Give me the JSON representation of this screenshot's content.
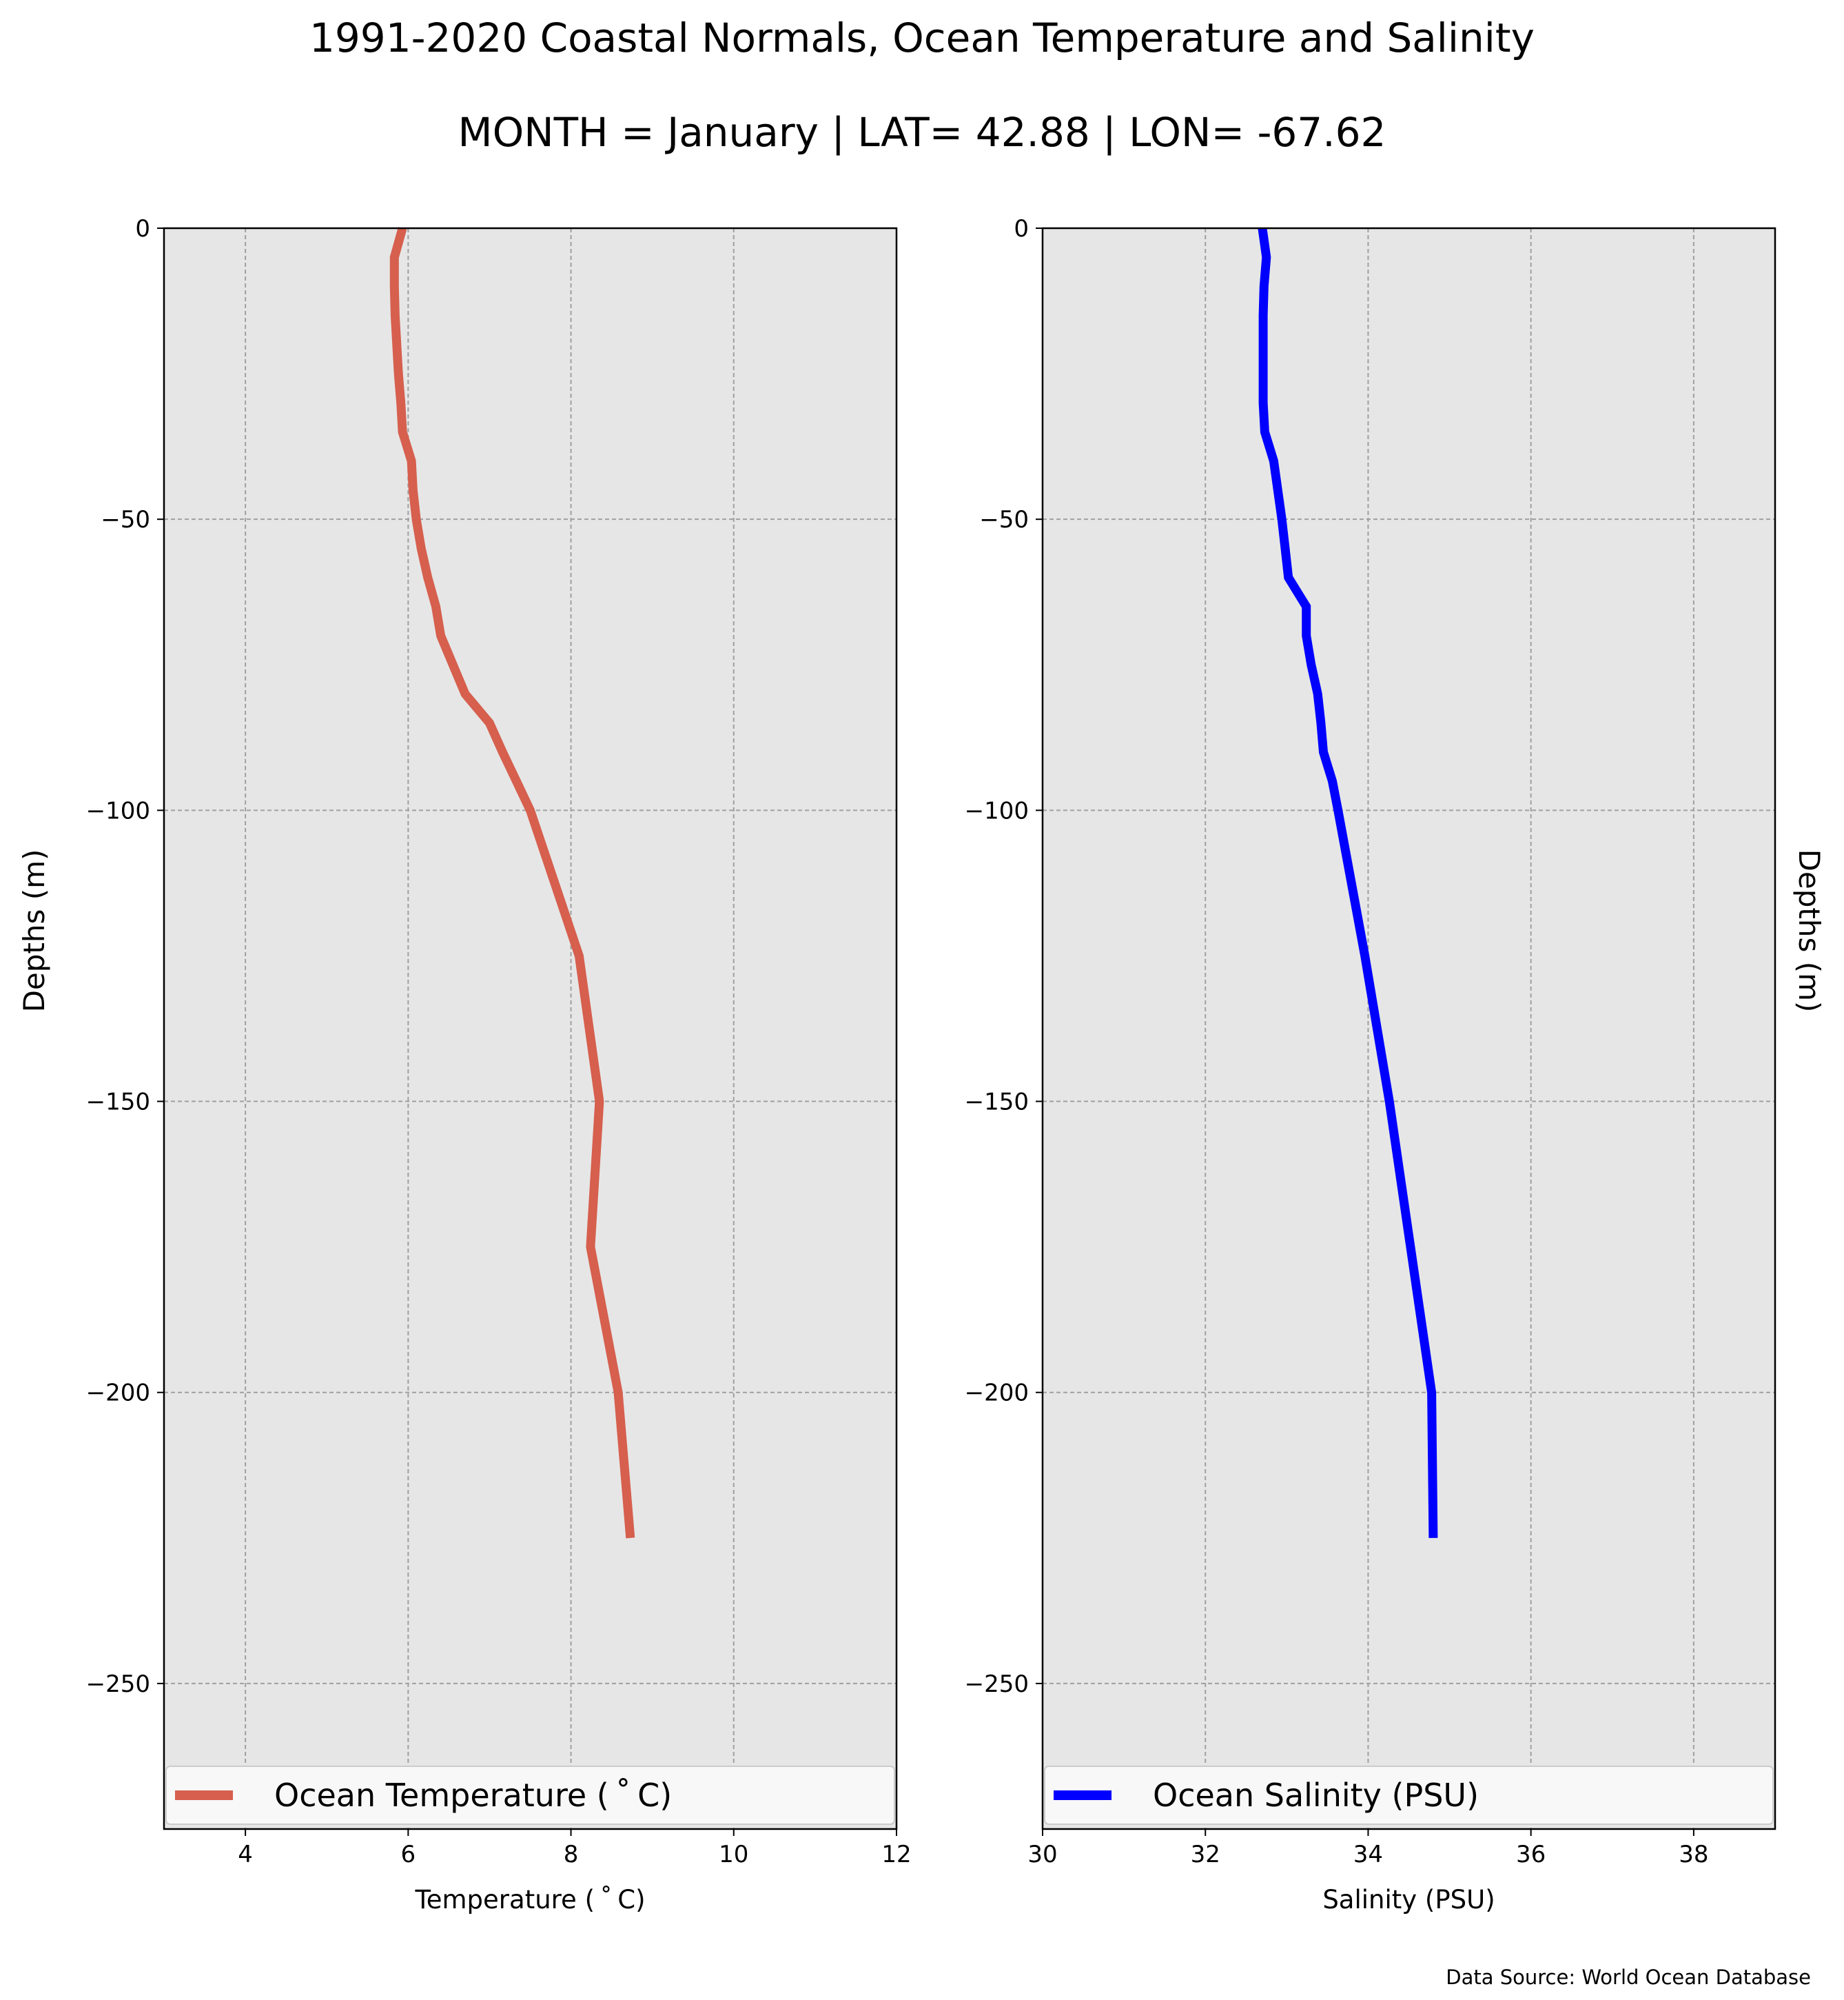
{
  "figure": {
    "title_line1": "1991-2020 Coastal Normals, Ocean Temperature and Salinity",
    "title_line2": "MONTH = January | LAT= 42.88 | LON= -67.62",
    "source_note": "Data Source: World Ocean Database"
  },
  "chart_data": [
    {
      "type": "line",
      "panel": "left",
      "xlabel": "Temperature ($^\\circ$C)",
      "xlabel_display": "Temperature ( ˚ C)",
      "ylabel": "Depths (m)",
      "xlim": [
        3,
        12
      ],
      "ylim": [
        -275,
        0
      ],
      "xticks": [
        4,
        6,
        8,
        10,
        12
      ],
      "xtick_labels": [
        "4",
        "6",
        "8",
        "10",
        "12"
      ],
      "yticks": [
        0,
        -50,
        -100,
        -150,
        -200,
        -250
      ],
      "ytick_labels": [
        "0",
        "−50",
        "−100",
        "−150",
        "−200",
        "−250"
      ],
      "grid": true,
      "legend_position": "lower-center",
      "background_color": "#e6e6e6",
      "series": [
        {
          "name": "Ocean Temperature ( ˚ C)",
          "color": "#d65f4e",
          "depth": [
            0,
            -5,
            -10,
            -15,
            -20,
            -25,
            -30,
            -35,
            -40,
            -45,
            -50,
            -55,
            -60,
            -65,
            -70,
            -75,
            -80,
            -85,
            -90,
            -95,
            -100,
            -125,
            -150,
            -175,
            -200,
            -225
          ],
          "values": [
            5.93,
            5.83,
            5.83,
            5.84,
            5.86,
            5.88,
            5.91,
            5.93,
            6.04,
            6.06,
            6.1,
            6.16,
            6.24,
            6.34,
            6.4,
            6.55,
            6.7,
            7.0,
            7.16,
            7.33,
            7.5,
            8.1,
            8.35,
            8.24,
            8.58,
            8.73
          ]
        }
      ]
    },
    {
      "type": "line",
      "panel": "right",
      "xlabel": "Salinity (PSU)",
      "ylabel": "Depths (m)",
      "xlim": [
        30,
        39
      ],
      "ylim": [
        -275,
        0
      ],
      "xticks": [
        30,
        32,
        34,
        36,
        38
      ],
      "xtick_labels": [
        "30",
        "32",
        "34",
        "36",
        "38"
      ],
      "yticks": [
        0,
        -50,
        -100,
        -150,
        -200,
        -250
      ],
      "ytick_labels": [
        "0",
        "−50",
        "−100",
        "−150",
        "−200",
        "−250"
      ],
      "grid": true,
      "legend_position": "lower-center",
      "background_color": "#e6e6e6",
      "series": [
        {
          "name": "Ocean Salinity (PSU)",
          "color": "#0000ff",
          "depth": [
            0,
            -5,
            -10,
            -15,
            -20,
            -25,
            -30,
            -35,
            -40,
            -45,
            -50,
            -55,
            -60,
            -65,
            -70,
            -75,
            -80,
            -85,
            -90,
            -95,
            -100,
            -125,
            -150,
            -175,
            -200,
            -225
          ],
          "values": [
            32.7,
            32.75,
            32.72,
            32.71,
            32.71,
            32.71,
            32.71,
            32.73,
            32.84,
            32.89,
            32.94,
            32.98,
            33.02,
            33.24,
            33.24,
            33.3,
            33.38,
            33.42,
            33.45,
            33.56,
            33.63,
            33.96,
            34.26,
            34.52,
            34.78,
            34.8
          ]
        }
      ]
    }
  ]
}
